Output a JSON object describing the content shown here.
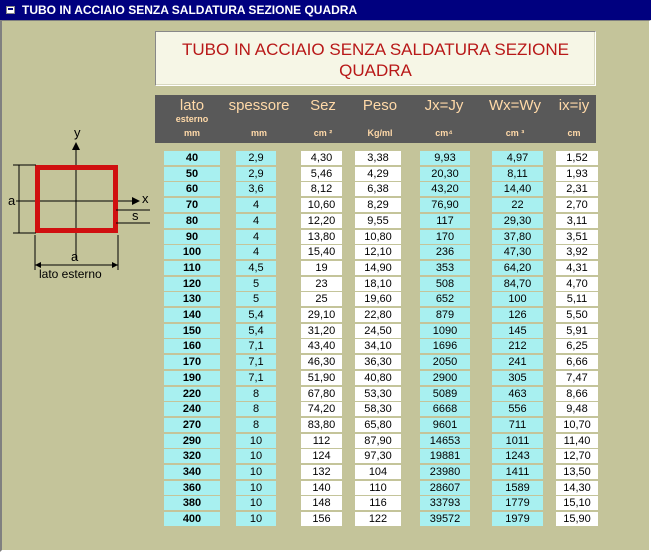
{
  "window": {
    "title": "TUBO IN ACCIAIO SENZA SALDATURA SEZIONE QUADRA"
  },
  "heading": {
    "line1": "TUBO IN ACCIAIO SENZA SALDATURA SEZIONE",
    "line2": "QUADRA"
  },
  "diagram": {
    "y_axis": "y",
    "x_axis": "x",
    "side_left": "a",
    "thickness": "s",
    "side_bottom": "a",
    "caption": "lato esterno",
    "frame_color": "#d01010"
  },
  "columns": [
    {
      "name": "lato",
      "sub": "esterno",
      "unit": "mm"
    },
    {
      "name": "spessore",
      "sub": "",
      "unit": "mm"
    },
    {
      "name": "Sez",
      "sub": "",
      "unit": "cm ²"
    },
    {
      "name": "Peso",
      "sub": "",
      "unit": "Kg/ml"
    },
    {
      "name": "Jx=Jy",
      "sub": "",
      "unit": "cm⁴"
    },
    {
      "name": "Wx=Wy",
      "sub": "",
      "unit": "cm ³"
    },
    {
      "name": "ix=iy",
      "sub": "",
      "unit": "cm"
    }
  ],
  "rows": [
    [
      "40",
      "2,9",
      "4,30",
      "3,38",
      "9,93",
      "4,97",
      "1,52"
    ],
    [
      "50",
      "2,9",
      "5,46",
      "4,29",
      "20,30",
      "8,11",
      "1,93"
    ],
    [
      "60",
      "3,6",
      "8,12",
      "6,38",
      "43,20",
      "14,40",
      "2,31"
    ],
    [
      "70",
      "4",
      "10,60",
      "8,29",
      "76,90",
      "22",
      "2,70"
    ],
    [
      "80",
      "4",
      "12,20",
      "9,55",
      "117",
      "29,30",
      "3,11"
    ],
    [
      "90",
      "4",
      "13,80",
      "10,80",
      "170",
      "37,80",
      "3,51"
    ],
    [
      "100",
      "4",
      "15,40",
      "12,10",
      "236",
      "47,30",
      "3,92"
    ],
    [
      "110",
      "4,5",
      "19",
      "14,90",
      "353",
      "64,20",
      "4,31"
    ],
    [
      "120",
      "5",
      "23",
      "18,10",
      "508",
      "84,70",
      "4,70"
    ],
    [
      "130",
      "5",
      "25",
      "19,60",
      "652",
      "100",
      "5,11"
    ],
    [
      "140",
      "5,4",
      "29,10",
      "22,80",
      "879",
      "126",
      "5,50"
    ],
    [
      "150",
      "5,4",
      "31,20",
      "24,50",
      "1090",
      "145",
      "5,91"
    ],
    [
      "160",
      "7,1",
      "43,40",
      "34,10",
      "1696",
      "212",
      "6,25"
    ],
    [
      "170",
      "7,1",
      "46,30",
      "36,30",
      "2050",
      "241",
      "6,66"
    ],
    [
      "190",
      "7,1",
      "51,90",
      "40,80",
      "2900",
      "305",
      "7,47"
    ],
    [
      "220",
      "8",
      "67,80",
      "53,30",
      "5089",
      "463",
      "8,66"
    ],
    [
      "240",
      "8",
      "74,20",
      "58,30",
      "6668",
      "556",
      "9,48"
    ],
    [
      "270",
      "8",
      "83,80",
      "65,80",
      "9601",
      "711",
      "10,70"
    ],
    [
      "290",
      "10",
      "112",
      "87,90",
      "14653",
      "1011",
      "11,40"
    ],
    [
      "320",
      "10",
      "124",
      "97,30",
      "19881",
      "1243",
      "12,70"
    ],
    [
      "340",
      "10",
      "132",
      "104",
      "23980",
      "1411",
      "13,50"
    ],
    [
      "360",
      "10",
      "140",
      "110",
      "28607",
      "1589",
      "14,30"
    ],
    [
      "380",
      "10",
      "148",
      "116",
      "33793",
      "1779",
      "15,10"
    ],
    [
      "400",
      "10",
      "156",
      "122",
      "39572",
      "1979",
      "15,90"
    ]
  ]
}
